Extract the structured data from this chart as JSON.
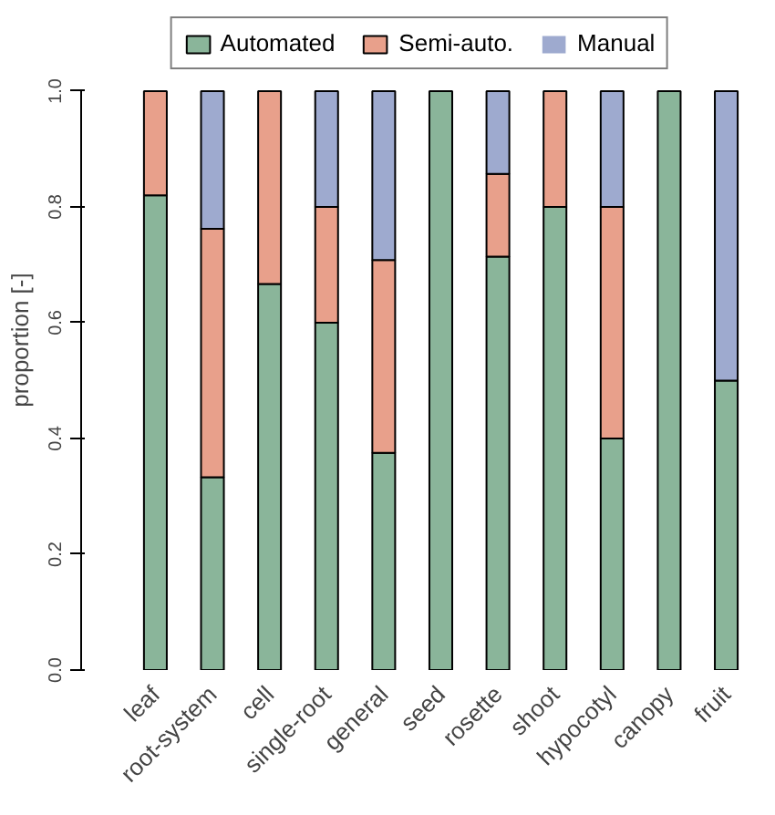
{
  "chart_data": {
    "type": "bar",
    "stacked": true,
    "ylabel": "proportion [-]",
    "categories": [
      "leaf",
      "root-system",
      "cell",
      "single-root",
      "general",
      "seed",
      "rosette",
      "shoot",
      "hypocotyl",
      "canopy",
      "fruit"
    ],
    "series": [
      {
        "name": "Automated",
        "color": "#8ab59a",
        "values": [
          0.82,
          0.333,
          0.667,
          0.6,
          0.375,
          1.0,
          0.714,
          0.8,
          0.4,
          1.0,
          0.5
        ]
      },
      {
        "name": "Semi-auto.",
        "color": "#e8a08b",
        "values": [
          0.18,
          0.429,
          0.333,
          0.2,
          0.333,
          0.0,
          0.143,
          0.2,
          0.4,
          0.0,
          0.0
        ]
      },
      {
        "name": "Manual",
        "color": "#9eaacf",
        "values": [
          0.0,
          0.238,
          0.0,
          0.2,
          0.292,
          0.0,
          0.143,
          0.0,
          0.2,
          0.0,
          0.5
        ]
      }
    ],
    "ylim": [
      0,
      1
    ],
    "yticks": [
      {
        "value": 0,
        "label": "0.0"
      },
      {
        "value": 0.2,
        "label": "0.2"
      },
      {
        "value": 0.4,
        "label": "0.4"
      },
      {
        "value": 0.6,
        "label": "0.6"
      },
      {
        "value": 0.8,
        "label": "0.8"
      },
      {
        "value": 1,
        "label": "1.0"
      }
    ],
    "grid": false,
    "legend": "top"
  }
}
